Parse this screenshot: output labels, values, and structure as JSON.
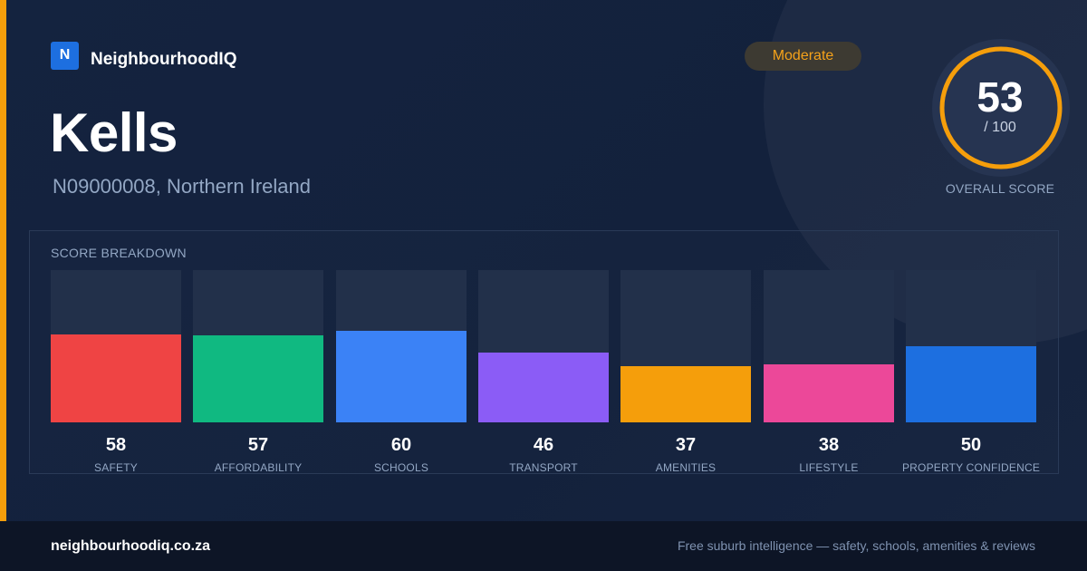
{
  "brand": {
    "logo_letter": "N",
    "name": "NeighbourhoodIQ"
  },
  "location": {
    "name": "Kells",
    "subtitle": "N09000008, Northern Ireland"
  },
  "rating": {
    "label": "Moderate",
    "color": "#f59e0b"
  },
  "overall_score": {
    "value": "53",
    "max": "/ 100",
    "label": "OVERALL SCORE",
    "fraction": 0.53
  },
  "breakdown": {
    "title": "SCORE BREAKDOWN",
    "items": [
      {
        "label": "SAFETY",
        "value": "58",
        "color": "#ef4444"
      },
      {
        "label": "AFFORDABILITY",
        "value": "57",
        "color": "#10b981"
      },
      {
        "label": "SCHOOLS",
        "value": "60",
        "color": "#3b82f6"
      },
      {
        "label": "TRANSPORT",
        "value": "46",
        "color": "#8b5cf6"
      },
      {
        "label": "AMENITIES",
        "value": "37",
        "color": "#f59e0b"
      },
      {
        "label": "LIFESTYLE",
        "value": "38",
        "color": "#ec4899"
      },
      {
        "label": "PROPERTY CONFIDENCE",
        "value": "50",
        "color": "#1d6fe0"
      }
    ]
  },
  "footer": {
    "url": "neighbourhoodiq.co.za",
    "tagline": "Free suburb intelligence — safety, schools, amenities & reviews"
  }
}
